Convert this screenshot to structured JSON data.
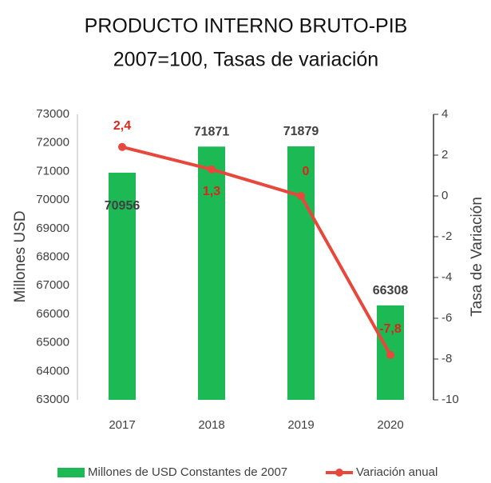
{
  "chart_data": {
    "type": "bar",
    "title": [
      "PRODUCTO INTERNO BRUTO-PIB",
      "2007=100, Tasas de variación"
    ],
    "categories": [
      "2017",
      "2018",
      "2019",
      "2020"
    ],
    "series": [
      {
        "name": "Millones de USD Constantes de 2007",
        "color": "#1db954",
        "type": "bar",
        "values": [
          70956,
          71871,
          71879,
          66308
        ]
      },
      {
        "name": "Variación anual",
        "color": "#e8473c",
        "type": "line",
        "axis": "y2",
        "values": [
          2.4,
          1.3,
          0,
          -7.8
        ],
        "value_labels": [
          "2,4",
          "1,3",
          "0",
          "-7,8"
        ]
      }
    ],
    "ylabel": "Millones USD",
    "y2label": "Tasa de Variación",
    "ylim": [
      63000,
      73000
    ],
    "yticks": [
      63000,
      64000,
      65000,
      66000,
      67000,
      68000,
      69000,
      70000,
      71000,
      72000,
      73000
    ],
    "y2lim": [
      -10,
      4
    ],
    "y2ticks": [
      -10,
      -8,
      -6,
      -4,
      -2,
      0,
      2,
      4
    ],
    "legend": "bottom"
  }
}
